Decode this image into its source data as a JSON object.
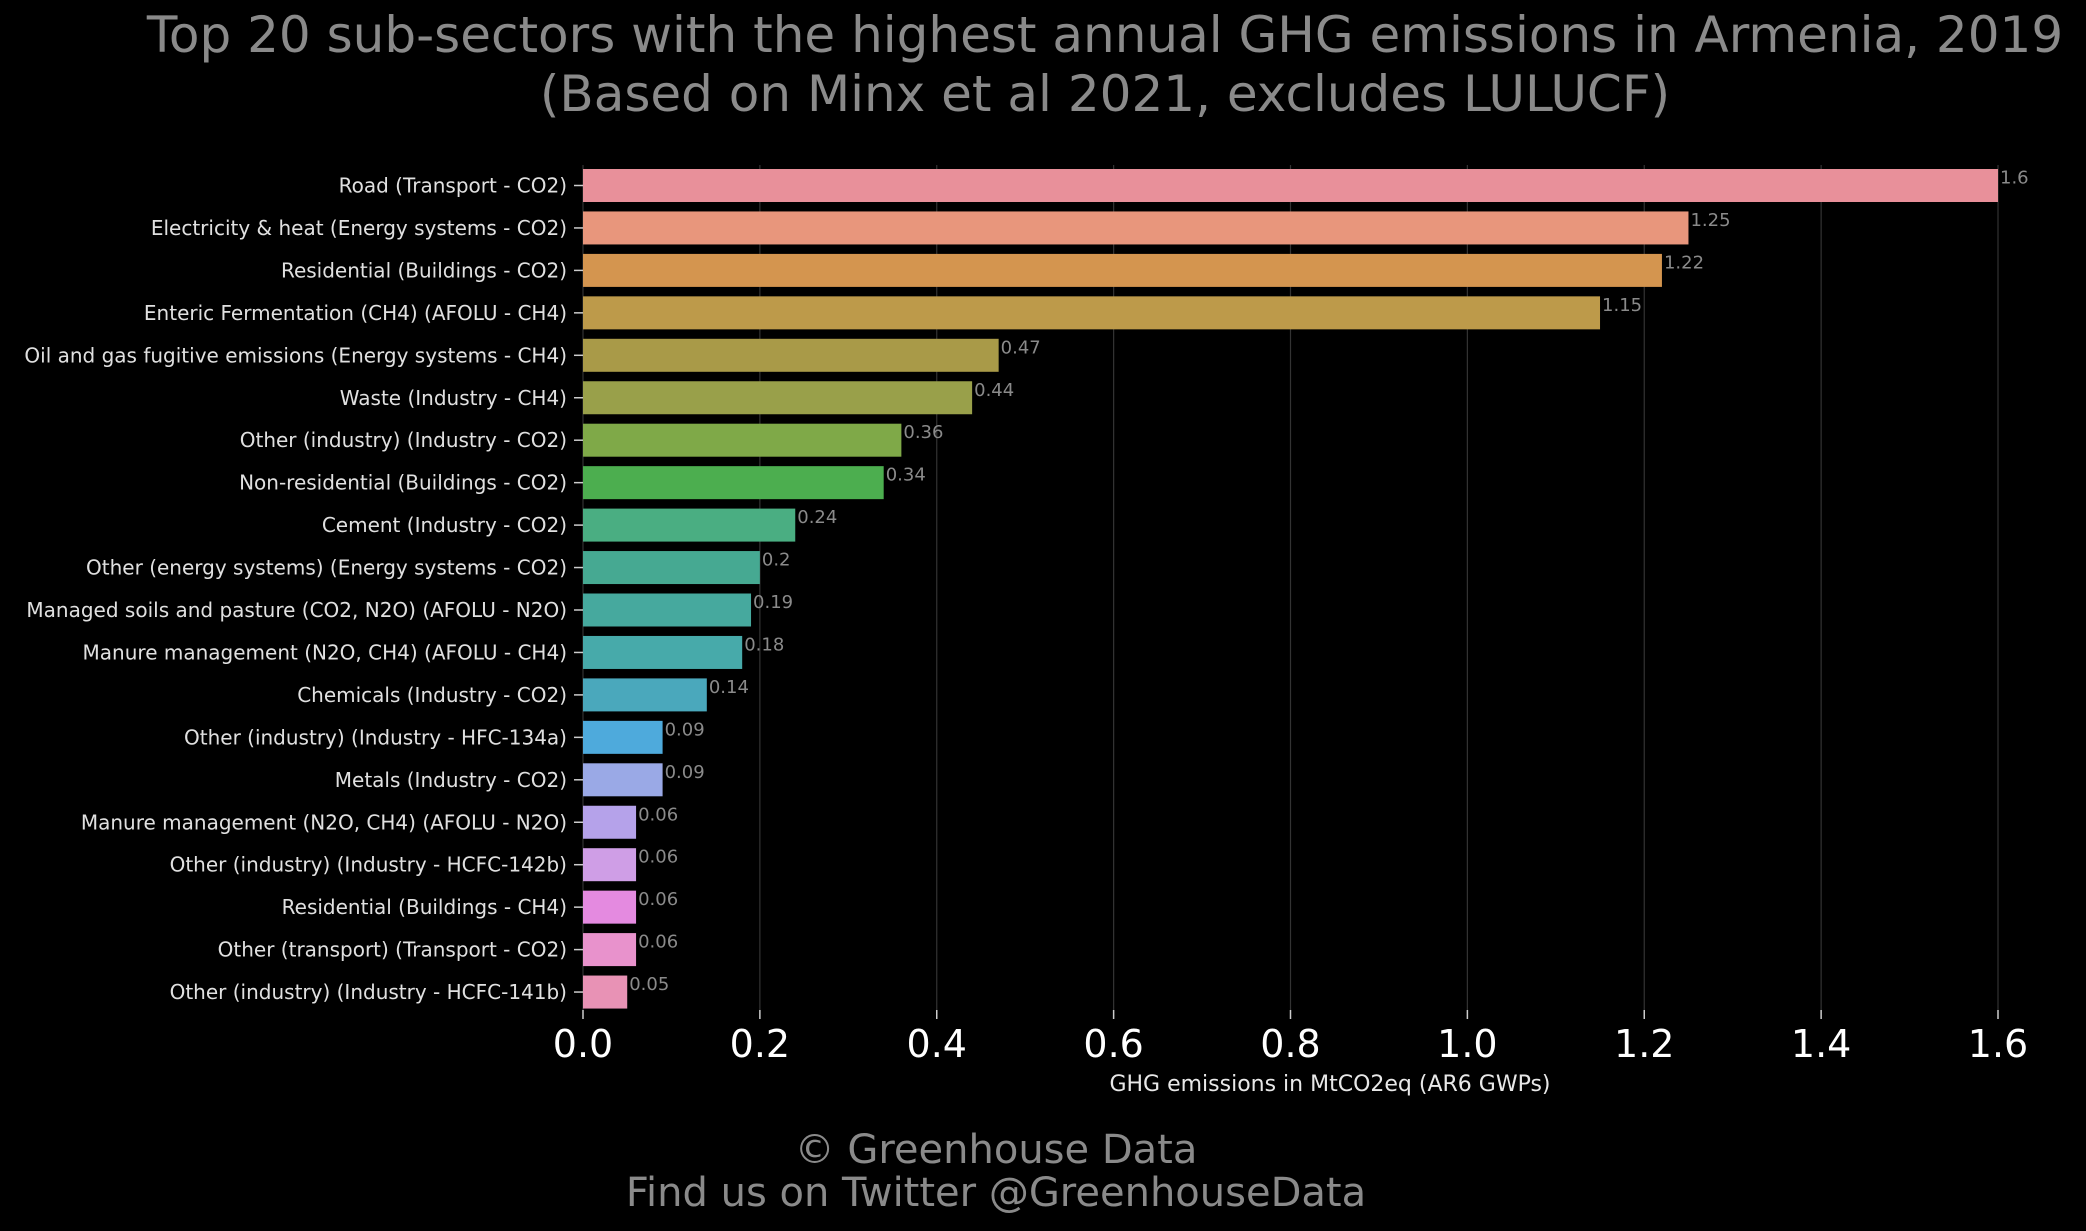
{
  "chart_data": {
    "type": "bar",
    "orientation": "horizontal",
    "title": [
      "Top 20 sub-sectors with the highest annual GHG emissions in Armenia, 2019",
      "(Based on Minx et al 2021, excludes LULUCF)"
    ],
    "xlabel": "GHG emissions in MtCO2eq (AR6 GWPs)",
    "ylabel": "",
    "xlim": [
      0,
      1.6
    ],
    "xticks": [
      0.0,
      0.2,
      0.4,
      0.6,
      0.8,
      1.0,
      1.2,
      1.4,
      1.6
    ],
    "xtick_labels": [
      "0.0",
      "0.2",
      "0.4",
      "0.6",
      "0.8",
      "1.0",
      "1.2",
      "1.4",
      "1.6"
    ],
    "grid": "vertical",
    "categories": [
      "Road (Transport - CO2)",
      "Electricity & heat (Energy systems - CO2)",
      "Residential (Buildings - CO2)",
      "Enteric Fermentation (CH4) (AFOLU - CH4)",
      "Oil and gas fugitive emissions (Energy systems - CH4)",
      "Waste (Industry - CH4)",
      "Other (industry) (Industry - CO2)",
      "Non-residential (Buildings - CO2)",
      "Cement (Industry - CO2)",
      "Other (energy systems) (Energy systems - CO2)",
      "Managed soils and pasture (CO2, N2O) (AFOLU - N2O)",
      "Manure management (N2O, CH4) (AFOLU - CH4)",
      "Chemicals (Industry - CO2)",
      "Other (industry) (Industry - HFC-134a)",
      "Metals (Industry - CO2)",
      "Manure management (N2O, CH4) (AFOLU - N2O)",
      "Other (industry) (Industry - HCFC-142b)",
      "Residential (Buildings - CH4)",
      "Other (transport) (Transport - CO2)",
      "Other (industry) (Industry - HCFC-141b)"
    ],
    "values": [
      1.6,
      1.25,
      1.22,
      1.15,
      0.47,
      0.44,
      0.36,
      0.34,
      0.24,
      0.2,
      0.19,
      0.18,
      0.14,
      0.09,
      0.09,
      0.06,
      0.06,
      0.06,
      0.06,
      0.05
    ],
    "value_labels": [
      "1.6",
      "1.25",
      "1.22",
      "1.15",
      "0.47",
      "0.44",
      "0.36",
      "0.34",
      "0.24",
      "0.2",
      "0.19",
      "0.18",
      "0.14",
      "0.09",
      "0.09",
      "0.06",
      "0.06",
      "0.06",
      "0.06",
      "0.05"
    ],
    "colors": [
      "#e8909a",
      "#e8967c",
      "#d4954f",
      "#bd9a4a",
      "#a99a48",
      "#99a04a",
      "#7fa948",
      "#4cae4f",
      "#4aae82",
      "#46a992",
      "#46a99e",
      "#47aaaa",
      "#4aa8bc",
      "#4eaadc",
      "#9aa9e6",
      "#b5a2ea",
      "#cf9ee6",
      "#e48ae0",
      "#e892cc",
      "#e892b5"
    ]
  },
  "footer": {
    "copyright": "© Greenhouse Data",
    "twitter": "Find us on Twitter @GreenhouseData"
  }
}
